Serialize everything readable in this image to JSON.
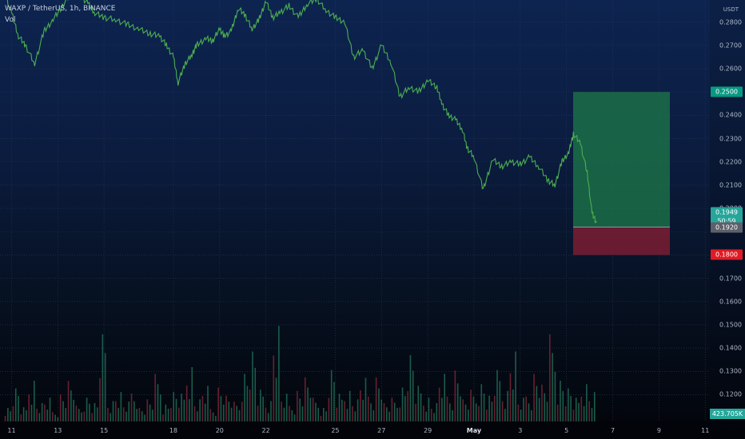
{
  "header": {
    "symbol": "WAXP / TetherUS, 1h, BINANCE",
    "indicator": "Vol"
  },
  "price_axis": {
    "unit": "USDT",
    "ticks": [
      "0.2800",
      "0.2700",
      "0.2600",
      "0.2400",
      "0.2300",
      "0.2200",
      "0.2100",
      "0.2000",
      "0.1700",
      "0.1600",
      "0.1500",
      "0.1400",
      "0.1300",
      "0.1200"
    ],
    "tick_values": [
      0.28,
      0.27,
      0.26,
      0.24,
      0.23,
      0.22,
      0.21,
      0.2,
      0.17,
      0.16,
      0.15,
      0.14,
      0.13,
      0.12
    ],
    "grid_values": [
      0.28,
      0.27,
      0.26,
      0.25,
      0.24,
      0.23,
      0.22,
      0.21,
      0.2,
      0.19,
      0.18,
      0.17,
      0.16,
      0.15,
      0.14,
      0.13,
      0.12
    ],
    "scale": {
      "min": 0.1085,
      "max": 0.2895
    }
  },
  "tags": {
    "target": {
      "label": "0.2500",
      "value": 0.25,
      "color": "#089981"
    },
    "current": {
      "label": "0.1949",
      "value": 0.1949,
      "color": "#26a69a"
    },
    "countdown": {
      "label": "50:59"
    },
    "entry": {
      "label": "0.1920",
      "value": 0.192,
      "color": "#5d606b"
    },
    "stop": {
      "label": "0.1800",
      "value": 0.18,
      "color": "#e01b24"
    },
    "volume": {
      "label": "423.705K"
    }
  },
  "position_tool": {
    "entry": 0.192,
    "target": 0.25,
    "stop": 0.18,
    "profit_color": "#1e7a4a",
    "loss_color": "#7a1d33"
  },
  "time_axis": {
    "labels": [
      "11",
      "13",
      "15",
      "18",
      "20",
      "22",
      "25",
      "27",
      "29",
      "May",
      "3",
      "5",
      "7",
      "9",
      "11"
    ],
    "positions": [
      0,
      2,
      4,
      7,
      9,
      11,
      14,
      16,
      18,
      20,
      22,
      24,
      26,
      28,
      30
    ],
    "range": {
      "start_day": -0.5,
      "end_day": 30.2
    }
  },
  "chart_data": {
    "type": "line",
    "title": "WAXP / TetherUS, 1h, BINANCE",
    "x_unit": "day index (0 = Apr 11, 20 = May 1)",
    "x": [
      -0.3,
      0.0,
      0.3,
      0.6,
      1.0,
      1.4,
      1.8,
      2.2,
      2.6,
      3.0,
      3.3,
      3.6,
      4.0,
      4.5,
      5.0,
      5.5,
      6.0,
      6.4,
      6.7,
      7.0,
      7.2,
      7.5,
      7.8,
      8.0,
      8.4,
      8.7,
      9.0,
      9.2,
      9.5,
      9.8,
      10.1,
      10.4,
      10.7,
      11.0,
      11.3,
      11.6,
      12.0,
      12.4,
      12.8,
      13.2,
      13.6,
      14.0,
      14.4,
      14.8,
      15.2,
      15.6,
      16.0,
      16.4,
      16.8,
      17.2,
      17.6,
      18.0,
      18.4,
      18.6,
      18.9,
      19.2,
      19.5,
      19.7,
      20.0,
      20.4,
      20.8,
      21.2,
      21.6,
      22.0,
      22.4,
      22.8,
      23.2,
      23.5,
      23.8,
      24.1,
      24.3,
      24.6,
      24.9,
      25.1,
      25.3
    ],
    "y": [
      0.292,
      0.284,
      0.274,
      0.27,
      0.262,
      0.276,
      0.281,
      0.287,
      0.293,
      0.291,
      0.288,
      0.284,
      0.282,
      0.281,
      0.279,
      0.277,
      0.275,
      0.274,
      0.27,
      0.265,
      0.254,
      0.262,
      0.266,
      0.27,
      0.273,
      0.272,
      0.277,
      0.274,
      0.276,
      0.286,
      0.283,
      0.277,
      0.281,
      0.289,
      0.282,
      0.284,
      0.287,
      0.282,
      0.288,
      0.29,
      0.285,
      0.282,
      0.28,
      0.265,
      0.268,
      0.26,
      0.27,
      0.263,
      0.248,
      0.252,
      0.25,
      0.255,
      0.252,
      0.245,
      0.24,
      0.238,
      0.234,
      0.226,
      0.222,
      0.208,
      0.221,
      0.218,
      0.22,
      0.219,
      0.222,
      0.218,
      0.212,
      0.21,
      0.22,
      0.224,
      0.232,
      0.228,
      0.215,
      0.198,
      0.194
    ],
    "volume_values": [
      20,
      45,
      18,
      60,
      25,
      30,
      15,
      40,
      55,
      20,
      35,
      25,
      110,
      30,
      40,
      25,
      45,
      20,
      30,
      60,
      25,
      40,
      35,
      80,
      30,
      45,
      20,
      50,
      35,
      25,
      70,
      95,
      40,
      30,
      130,
      35,
      25,
      45,
      60,
      30,
      20,
      70,
      35,
      45,
      30,
      55,
      40,
      65,
      25,
      30,
      50,
      90,
      45,
      35,
      25,
      60,
      40,
      75,
      30,
      40,
      55,
      35,
      65,
      45,
      95,
      30,
      40,
      70,
      50,
      110,
      60,
      45,
      30,
      55,
      40
    ],
    "ylim": [
      0.1085,
      0.2895
    ],
    "line_color": "#4caf50"
  }
}
